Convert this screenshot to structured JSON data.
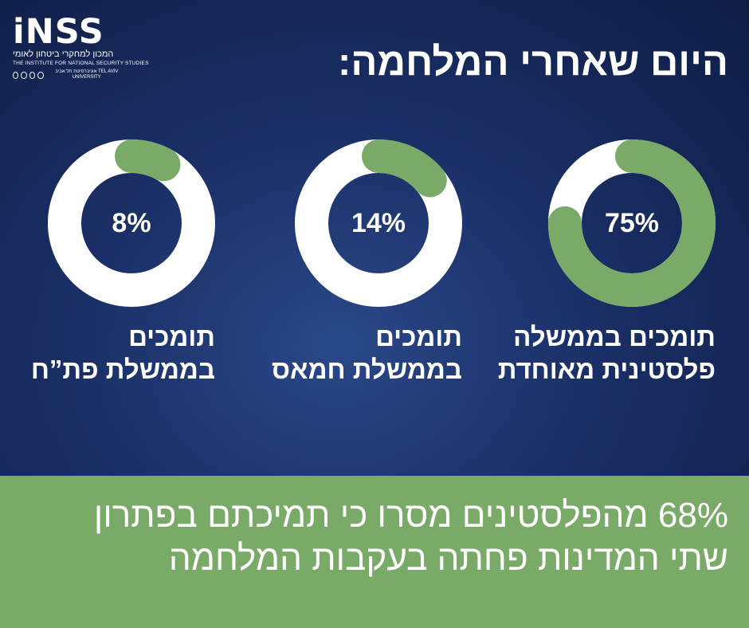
{
  "logo": {
    "mark": "iNSS",
    "hebrew_name": "המכון למחקרי ביטחון לאומי",
    "english_name": "THE INSTITUTE FOR NATIONAL SECURITY STUDIES",
    "university": "אוניברסיטת תל אביב TEL AVIV UNIVERSITY"
  },
  "title": "היום שאחרי המלחמה:",
  "colors": {
    "ring_fill": "#7aaa68",
    "ring_track": "#ffffff",
    "band": "#7aaa68"
  },
  "chart_data": {
    "type": "donut",
    "title": "היום שאחרי המלחמה:",
    "series": [
      {
        "label_line1": "תומכים בממשלה",
        "label_line2": "פלסטינית מאוחדת",
        "value": 75,
        "value_label": "75%"
      },
      {
        "label_line1": "תומכים",
        "label_line2": "בממשלת חמאס",
        "value": 14,
        "value_label": "14%"
      },
      {
        "label_line1": "תומכים",
        "label_line2": "בממשלת פת”ח",
        "value": 8,
        "value_label": "8%"
      }
    ],
    "unit": "%"
  },
  "footer": {
    "line1": "68% מהפלסטינים מסרו כי תמיכתם בפתרון",
    "line2": "שתי המדינות פחתה בעקבות המלחמה"
  }
}
